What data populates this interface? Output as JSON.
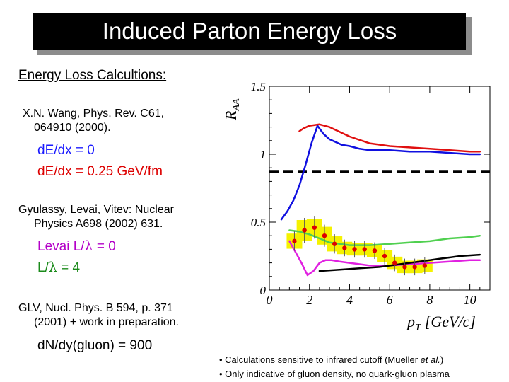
{
  "title": "Induced Parton Energy Loss",
  "left": {
    "heading": "Energy Loss Calcultions:",
    "ref1_line1": "X.N. Wang, Phys. Rev. C61,",
    "ref1_line2": "064910 (2000).",
    "ref1_item1": "dΕ/dx = 0",
    "ref1_item2": "dΕ/dx = 0.25 GeV/fm",
    "ref2_line1": "Gyulassy, Levai, Vitev: Nuclear",
    "ref2_line2": "Physics A698 (2002) 631.",
    "ref2_item1_prefix": "Levai L/",
    "ref2_item1_suffix": " = 0",
    "ref2_item2_prefix": "L/",
    "ref2_item2_suffix": " = 4",
    "lambda": "λ",
    "ref3_line1": "GLV, Nucl. Phys. B 594, p. 371",
    "ref3_line2": "(2001) + work in preparation.",
    "ref3_item1": "dN/dy(gluon) = 900"
  },
  "notes": {
    "line1_prefix": "• Calculations sensitive to infrared cutoff (Mueller ",
    "line1_italic": "et al.",
    "line1_suffix": ")",
    "line2": "• Only indicative of gluon density, no quark-gluon plasma"
  },
  "chart_data": {
    "type": "line",
    "ylabel_main": "R",
    "ylabel_sub": "AA",
    "xlabel_main": "p",
    "xlabel_sub": "T",
    "xlabel_unit": "[GeV/c]",
    "xlim": [
      0,
      11
    ],
    "ylim": [
      0,
      1.5
    ],
    "x_ticks": [
      "0",
      "2",
      "4",
      "6",
      "8",
      "10"
    ],
    "y_ticks": [
      "0",
      "0.5",
      "1",
      "1.5"
    ],
    "x_tick_values": [
      0,
      2,
      4,
      6,
      8,
      10
    ],
    "y_tick_values": [
      0,
      0.5,
      1,
      1.5
    ],
    "reference_line": {
      "y": 0.87,
      "style": "dashed",
      "color": "#000000"
    },
    "series": [
      {
        "color": "#e01010",
        "x": [
          1.5,
          1.7,
          2.0,
          2.5,
          3.0,
          4.0,
          5.0,
          6.0,
          7.0,
          8.0,
          9.0,
          10.0,
          10.5
        ],
        "y": [
          1.17,
          1.19,
          1.21,
          1.22,
          1.2,
          1.13,
          1.08,
          1.06,
          1.05,
          1.04,
          1.03,
          1.02,
          1.02
        ]
      },
      {
        "color": "#1010e0",
        "x": [
          0.6,
          0.9,
          1.2,
          1.5,
          1.8,
          2.1,
          2.4,
          2.7,
          3.0,
          3.3,
          3.6,
          4.0,
          4.5,
          5.0,
          6.0,
          7.0,
          8.0,
          9.0,
          10.0,
          10.5
        ],
        "y": [
          0.52,
          0.58,
          0.66,
          0.77,
          0.92,
          1.08,
          1.21,
          1.15,
          1.11,
          1.09,
          1.07,
          1.06,
          1.04,
          1.03,
          1.03,
          1.02,
          1.02,
          1.01,
          1.0,
          1.0
        ]
      },
      {
        "color": "#50d050",
        "x": [
          1.0,
          1.5,
          2.0,
          2.5,
          3.0,
          4.0,
          5.0,
          6.0,
          7.0,
          8.0,
          9.0,
          10.0,
          10.5
        ],
        "y": [
          0.44,
          0.43,
          0.41,
          0.38,
          0.35,
          0.33,
          0.33,
          0.34,
          0.35,
          0.36,
          0.38,
          0.39,
          0.4
        ]
      },
      {
        "color": "#e020e0",
        "x": [
          1.0,
          1.3,
          1.6,
          1.9,
          2.2,
          2.5,
          2.8,
          3.1,
          3.5,
          4.0,
          5.0,
          6.0,
          7.0,
          8.0,
          9.0,
          10.0,
          10.5
        ],
        "y": [
          0.36,
          0.28,
          0.2,
          0.11,
          0.14,
          0.2,
          0.22,
          0.22,
          0.21,
          0.2,
          0.18,
          0.18,
          0.19,
          0.2,
          0.21,
          0.22,
          0.22
        ]
      },
      {
        "color": "#000000",
        "x": [
          2.5,
          3.5,
          4.5,
          5.5,
          6.5,
          7.5,
          8.5,
          9.5,
          10.5
        ],
        "y": [
          0.14,
          0.15,
          0.16,
          0.17,
          0.19,
          0.21,
          0.23,
          0.25,
          0.26
        ]
      }
    ],
    "data_points": {
      "marker_color": "#dd0000",
      "box_color": "#f5f200",
      "x": [
        1.25,
        1.75,
        2.25,
        2.75,
        3.25,
        3.75,
        4.25,
        4.75,
        5.25,
        5.75,
        6.25,
        6.75,
        7.25,
        7.75
      ],
      "y": [
        0.36,
        0.44,
        0.46,
        0.4,
        0.34,
        0.31,
        0.3,
        0.3,
        0.29,
        0.25,
        0.2,
        0.17,
        0.17,
        0.18
      ],
      "err": [
        0.04,
        0.06,
        0.05,
        0.05,
        0.04,
        0.03,
        0.03,
        0.03,
        0.03,
        0.03,
        0.03,
        0.03,
        0.03,
        0.03
      ]
    }
  }
}
